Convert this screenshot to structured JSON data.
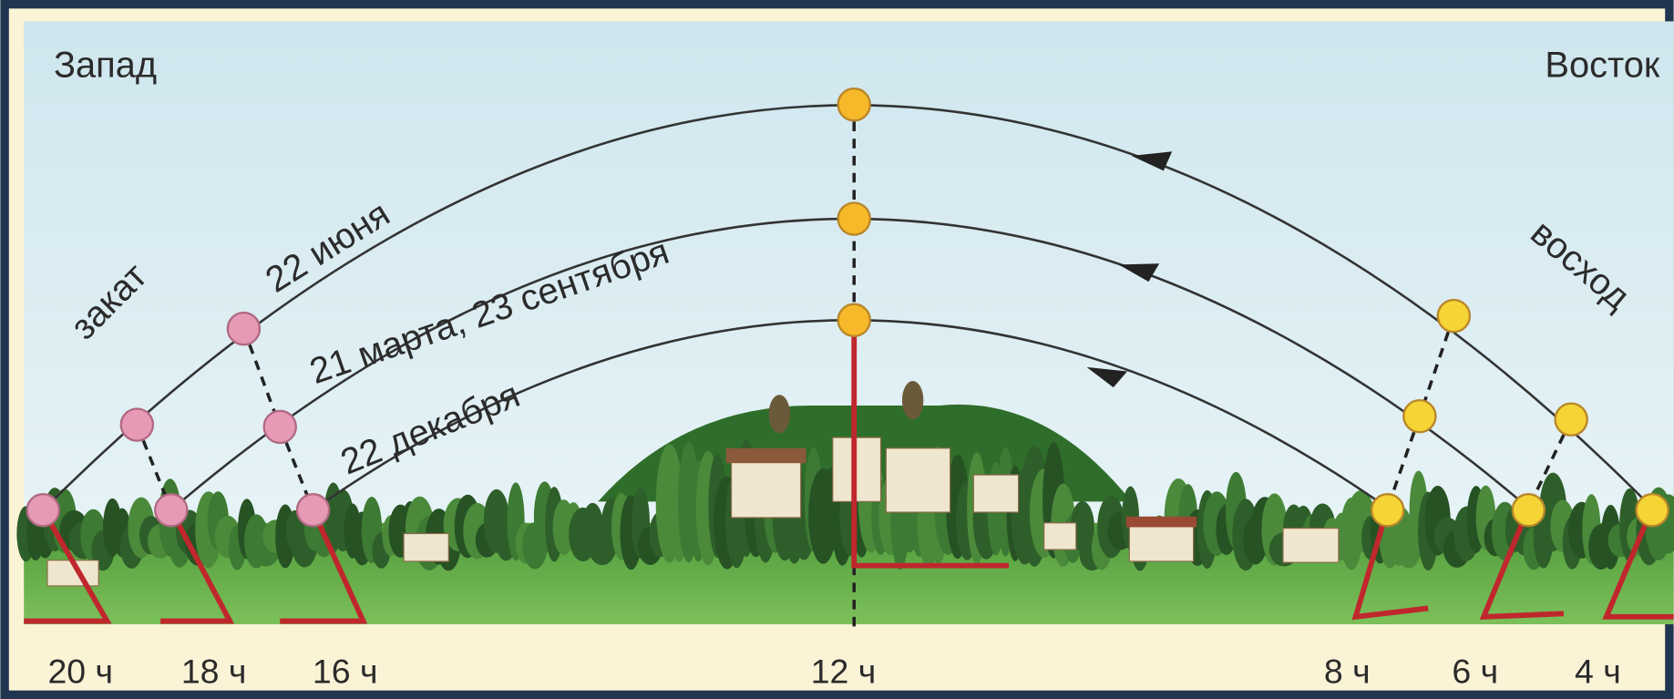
{
  "labels": {
    "west": "Запад",
    "east": "Восток",
    "sunset": "закат",
    "sunrise": "восход"
  },
  "arcs": [
    {
      "label": "22 июня"
    },
    {
      "label": "21 марта, 23 сентября"
    },
    {
      "label": "22 декабря"
    }
  ],
  "times": [
    "20 ч",
    "18 ч",
    "16 ч",
    "12 ч",
    "8 ч",
    "6 ч",
    "4 ч"
  ]
}
